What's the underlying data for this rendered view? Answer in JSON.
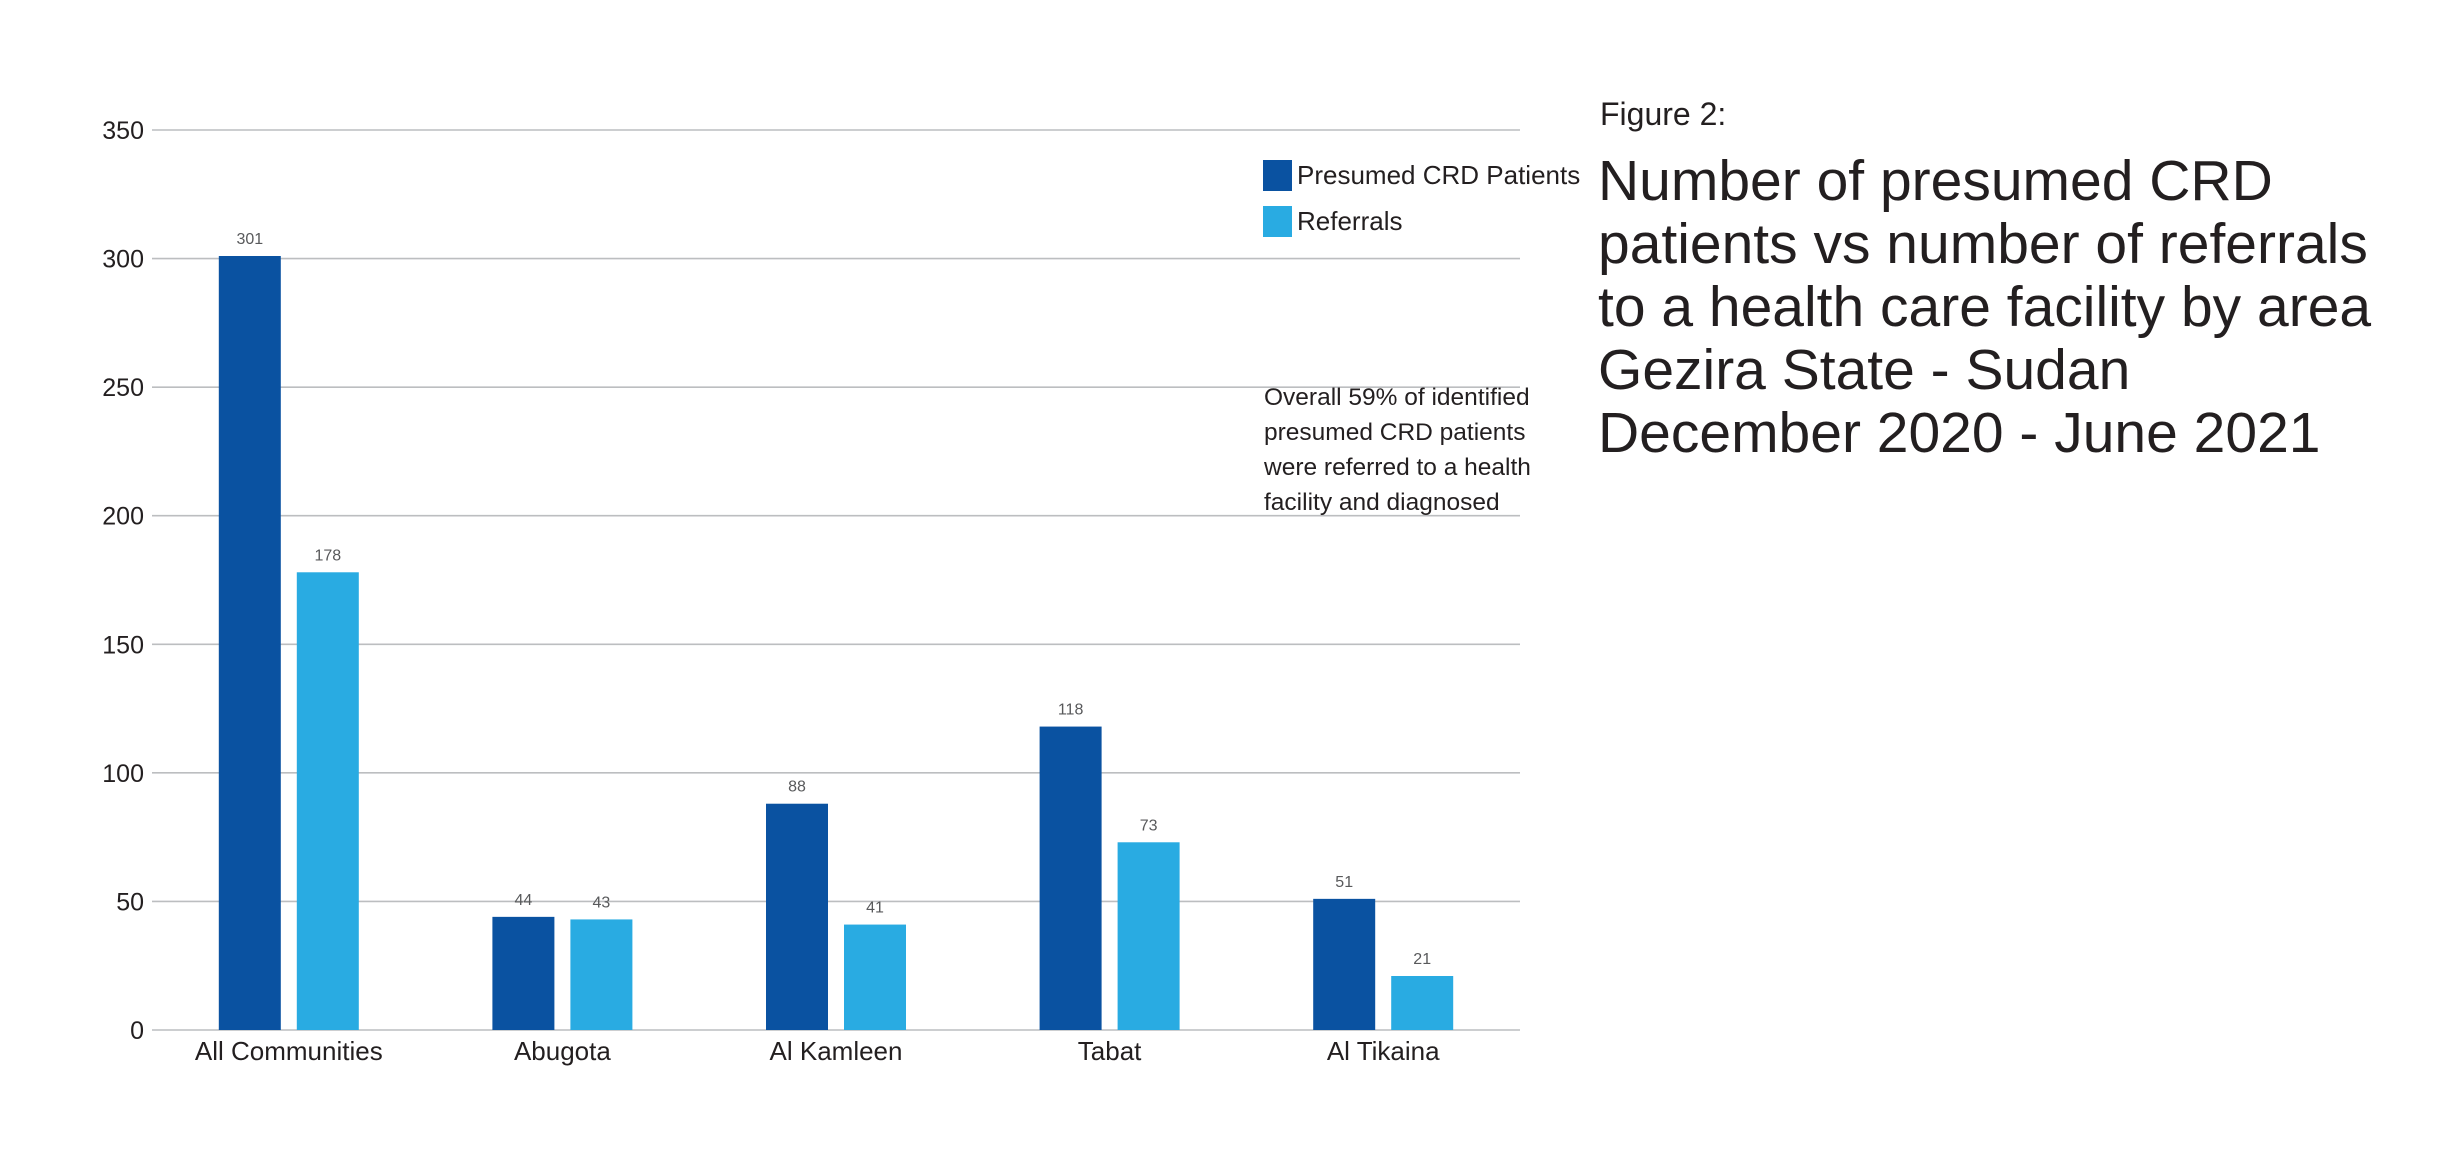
{
  "figure": {
    "label": "Figure 2:",
    "title": "Number of presumed CRD patients vs number of referrals to a health care facility by area Gezira State - Sudan December 2020 - June 2021"
  },
  "annotation": {
    "lines": [
      "Overall 59% of identified",
      "presumed CRD patients",
      "were referred to a health",
      "facility and diagnosed"
    ]
  },
  "colors": {
    "presumed": "#0a52a1",
    "referrals": "#29abe2",
    "grid": "#bcbec0",
    "text": "#231f20",
    "data_label": "#58595b"
  },
  "chart_data": {
    "type": "bar",
    "categories": [
      "All Communities",
      "Abugota",
      "Al Kamleen",
      "Tabat",
      "Al Tikaina"
    ],
    "series": [
      {
        "name": "Presumed CRD Patients",
        "values": [
          301,
          44,
          88,
          118,
          51
        ]
      },
      {
        "name": "Referrals",
        "values": [
          178,
          43,
          41,
          73,
          21
        ]
      }
    ],
    "data_labels": [
      [
        "301",
        "44",
        "88",
        "118",
        "51"
      ],
      [
        "178",
        "43",
        "41",
        "73",
        "21"
      ]
    ],
    "y_ticks": [
      0,
      50,
      100,
      150,
      200,
      250,
      300,
      350
    ],
    "ylim": [
      0,
      350
    ],
    "grid": true,
    "legend_position": "top-right"
  }
}
